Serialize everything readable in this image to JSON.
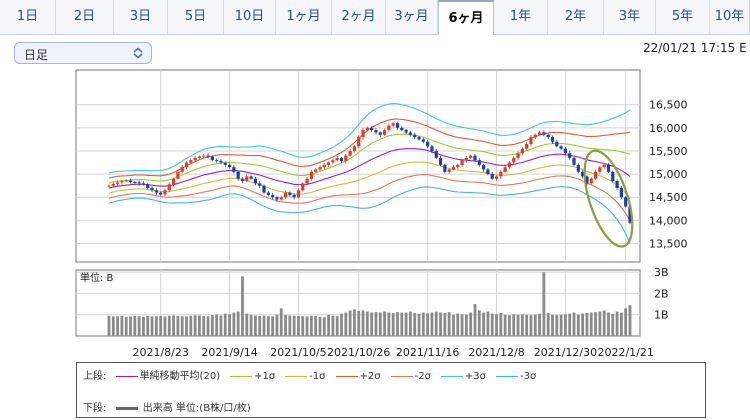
{
  "tabs": [
    {
      "label": "1日"
    },
    {
      "label": "2日"
    },
    {
      "label": "3日"
    },
    {
      "label": "5日"
    },
    {
      "label": "10日"
    },
    {
      "label": "1ヶ月"
    },
    {
      "label": "2ヶ月"
    },
    {
      "label": "3ヶ月"
    },
    {
      "label": "6ヶ月",
      "active": true
    },
    {
      "label": "1年"
    },
    {
      "label": "2年"
    },
    {
      "label": "3年"
    },
    {
      "label": "5年"
    },
    {
      "label": "10年"
    }
  ],
  "period_select": {
    "value": "日足"
  },
  "timestamp": "22/01/21 17:15 E",
  "chart_data": [
    {
      "type": "candlestick",
      "title": "",
      "y_ticks": [
        "16,500",
        "16,000",
        "15,500",
        "15,000",
        "14,500",
        "14,000",
        "13,500"
      ],
      "y_tick_values": [
        16500,
        16000,
        15500,
        15000,
        14500,
        14000,
        13500
      ],
      "ylim": [
        13100,
        17250
      ],
      "x_ticks": [
        "2021/8/23",
        "2021/9/14",
        "2021/10/5",
        "2021/10/26",
        "2021/11/16",
        "2021/12/8",
        "2021/12/30",
        "2022/1/21"
      ],
      "x_tick_index": [
        12,
        28,
        44,
        58,
        74,
        90,
        106,
        120
      ],
      "n_days": 122,
      "close": [
        14750,
        14790,
        14820,
        14850,
        14860,
        14830,
        14820,
        14800,
        14780,
        14700,
        14650,
        14600,
        14560,
        14650,
        14780,
        14900,
        15050,
        15150,
        15250,
        15300,
        15350,
        15380,
        15400,
        15380,
        15300,
        15280,
        15250,
        15200,
        15150,
        15050,
        14900,
        14850,
        14950,
        14900,
        14800,
        14750,
        14600,
        14550,
        14500,
        14450,
        14500,
        14600,
        14550,
        14500,
        14650,
        14800,
        14900,
        15050,
        15100,
        15150,
        15200,
        15250,
        15300,
        15350,
        15280,
        15400,
        15500,
        15600,
        15800,
        15950,
        16000,
        15950,
        15900,
        15850,
        15950,
        16050,
        16100,
        16000,
        15950,
        15900,
        15850,
        15800,
        15750,
        15700,
        15600,
        15500,
        15350,
        15200,
        15050,
        15100,
        15150,
        15200,
        15300,
        15350,
        15400,
        15300,
        15200,
        15100,
        15000,
        14900,
        14950,
        15050,
        15150,
        15250,
        15350,
        15450,
        15550,
        15650,
        15800,
        15850,
        15900,
        15850,
        15800,
        15700,
        15600,
        15550,
        15450,
        15350,
        15200,
        15050,
        14950,
        14800,
        14900,
        15050,
        15150,
        15200,
        15050,
        14850,
        14700,
        14500,
        14300,
        13950
      ],
      "ma20": [
        14700,
        14720,
        14740,
        14750,
        14760,
        14770,
        14780,
        14780,
        14780,
        14770,
        14760,
        14750,
        14740,
        14740,
        14750,
        14770,
        14800,
        14830,
        14860,
        14890,
        14920,
        14950,
        14980,
        15000,
        15020,
        15040,
        15060,
        15070,
        15080,
        15080,
        15070,
        15060,
        15040,
        15020,
        15000,
        14980,
        14950,
        14920,
        14890,
        14860,
        14840,
        14820,
        14800,
        14780,
        14770,
        14770,
        14780,
        14800,
        14830,
        14860,
        14890,
        14920,
        14950,
        14980,
        15010,
        15040,
        15080,
        15120,
        15170,
        15220,
        15270,
        15320,
        15360,
        15400,
        15440,
        15480,
        15510,
        15530,
        15540,
        15550,
        15550,
        15550,
        15540,
        15530,
        15510,
        15480,
        15450,
        15420,
        15390,
        15360,
        15340,
        15320,
        15310,
        15300,
        15290,
        15280,
        15270,
        15260,
        15240,
        15220,
        15200,
        15190,
        15190,
        15200,
        15210,
        15230,
        15250,
        15280,
        15310,
        15340,
        15370,
        15390,
        15410,
        15420,
        15430,
        15430,
        15420,
        15410,
        15390,
        15370,
        15340,
        15310,
        15290,
        15270,
        15250,
        15230,
        15200,
        15170,
        15130,
        15080,
        15020,
        14950
      ],
      "sigma": [
        110,
        108,
        106,
        104,
        102,
        100,
        100,
        100,
        100,
        102,
        104,
        108,
        112,
        118,
        125,
        132,
        140,
        150,
        160,
        168,
        175,
        180,
        184,
        186,
        186,
        184,
        180,
        175,
        170,
        168,
        170,
        175,
        182,
        190,
        200,
        210,
        215,
        218,
        220,
        220,
        218,
        214,
        210,
        205,
        200,
        198,
        196,
        195,
        196,
        198,
        200,
        205,
        210,
        220,
        230,
        245,
        260,
        280,
        300,
        320,
        335,
        345,
        350,
        352,
        350,
        345,
        338,
        330,
        320,
        310,
        300,
        290,
        280,
        270,
        262,
        255,
        250,
        246,
        242,
        240,
        238,
        236,
        234,
        232,
        230,
        228,
        226,
        224,
        222,
        220,
        218,
        216,
        215,
        215,
        216,
        218,
        222,
        226,
        230,
        234,
        238,
        240,
        240,
        238,
        236,
        234,
        232,
        232,
        234,
        238,
        244,
        252,
        262,
        274,
        288,
        304,
        322,
        345,
        370,
        400,
        435,
        480
      ],
      "volume_panel": {
        "label": "単位: B",
        "y_ticks": [
          "3B",
          "2B",
          "1B"
        ],
        "y_tick_values": [
          3,
          2,
          1
        ],
        "ylim": [
          0,
          3.1
        ],
        "volume": [
          0.95,
          0.92,
          0.93,
          0.95,
          0.9,
          0.92,
          0.94,
          0.93,
          0.9,
          0.95,
          0.92,
          0.93,
          0.94,
          0.92,
          0.95,
          0.96,
          0.94,
          0.93,
          0.92,
          0.95,
          0.97,
          0.96,
          0.94,
          0.93,
          0.98,
          1.0,
          0.96,
          1.05,
          1.02,
          1.1,
          1.15,
          2.8,
          1.05,
          0.98,
          0.96,
          0.94,
          0.95,
          0.93,
          0.92,
          1.0,
          1.3,
          0.98,
          0.96,
          0.95,
          0.94,
          0.93,
          0.92,
          0.95,
          0.94,
          0.9,
          0.88,
          1.0,
          0.95,
          0.93,
          1.05,
          1.1,
          1.2,
          1.25,
          1.18,
          1.2,
          1.15,
          1.1,
          1.12,
          1.1,
          1.15,
          1.1,
          1.08,
          1.12,
          1.1,
          1.1,
          1.15,
          1.08,
          1.05,
          1.1,
          1.06,
          1.1,
          1.15,
          1.1,
          1.08,
          1.12,
          1.0,
          1.05,
          1.02,
          1.0,
          1.1,
          1.5,
          1.2,
          1.1,
          1.15,
          1.05,
          1.02,
          1.08,
          1.0,
          0.98,
          1.02,
          1.0,
          1.02,
          1.0,
          0.98,
          1.0,
          1.05,
          3.0,
          1.08,
          1.0,
          0.98,
          1.0,
          1.02,
          1.05,
          1.1,
          1.0,
          1.05,
          1.08,
          1.1,
          1.12,
          1.15,
          1.2,
          1.1,
          1.05,
          1.15,
          1.1,
          1.3,
          1.45
        ]
      }
    }
  ],
  "legend": {
    "upper_label": "上段:",
    "lower_label": "下段:",
    "items": [
      {
        "label": "単純移動平均(20)",
        "color": "#a020c8"
      },
      {
        "label": "+1σ",
        "color": "#9acd32"
      },
      {
        "label": "-1σ",
        "color": "#c8c040"
      },
      {
        "label": "+2σ",
        "color": "#e05a3a"
      },
      {
        "label": "-2σ",
        "color": "#e07a5a"
      },
      {
        "label": "+3σ",
        "color": "#40c8e0"
      },
      {
        "label": "-3σ",
        "color": "#40b8d8"
      }
    ],
    "volume_item": {
      "label": "出来高 単位:(B株/口/枚)",
      "color": "#666666"
    }
  },
  "colors": {
    "up": "#e03a2a",
    "down": "#1c3ea8",
    "grid": "#d4d4d4",
    "highlight_ellipse": "#8aa03a",
    "volume_bar": "#8a8a8a"
  }
}
